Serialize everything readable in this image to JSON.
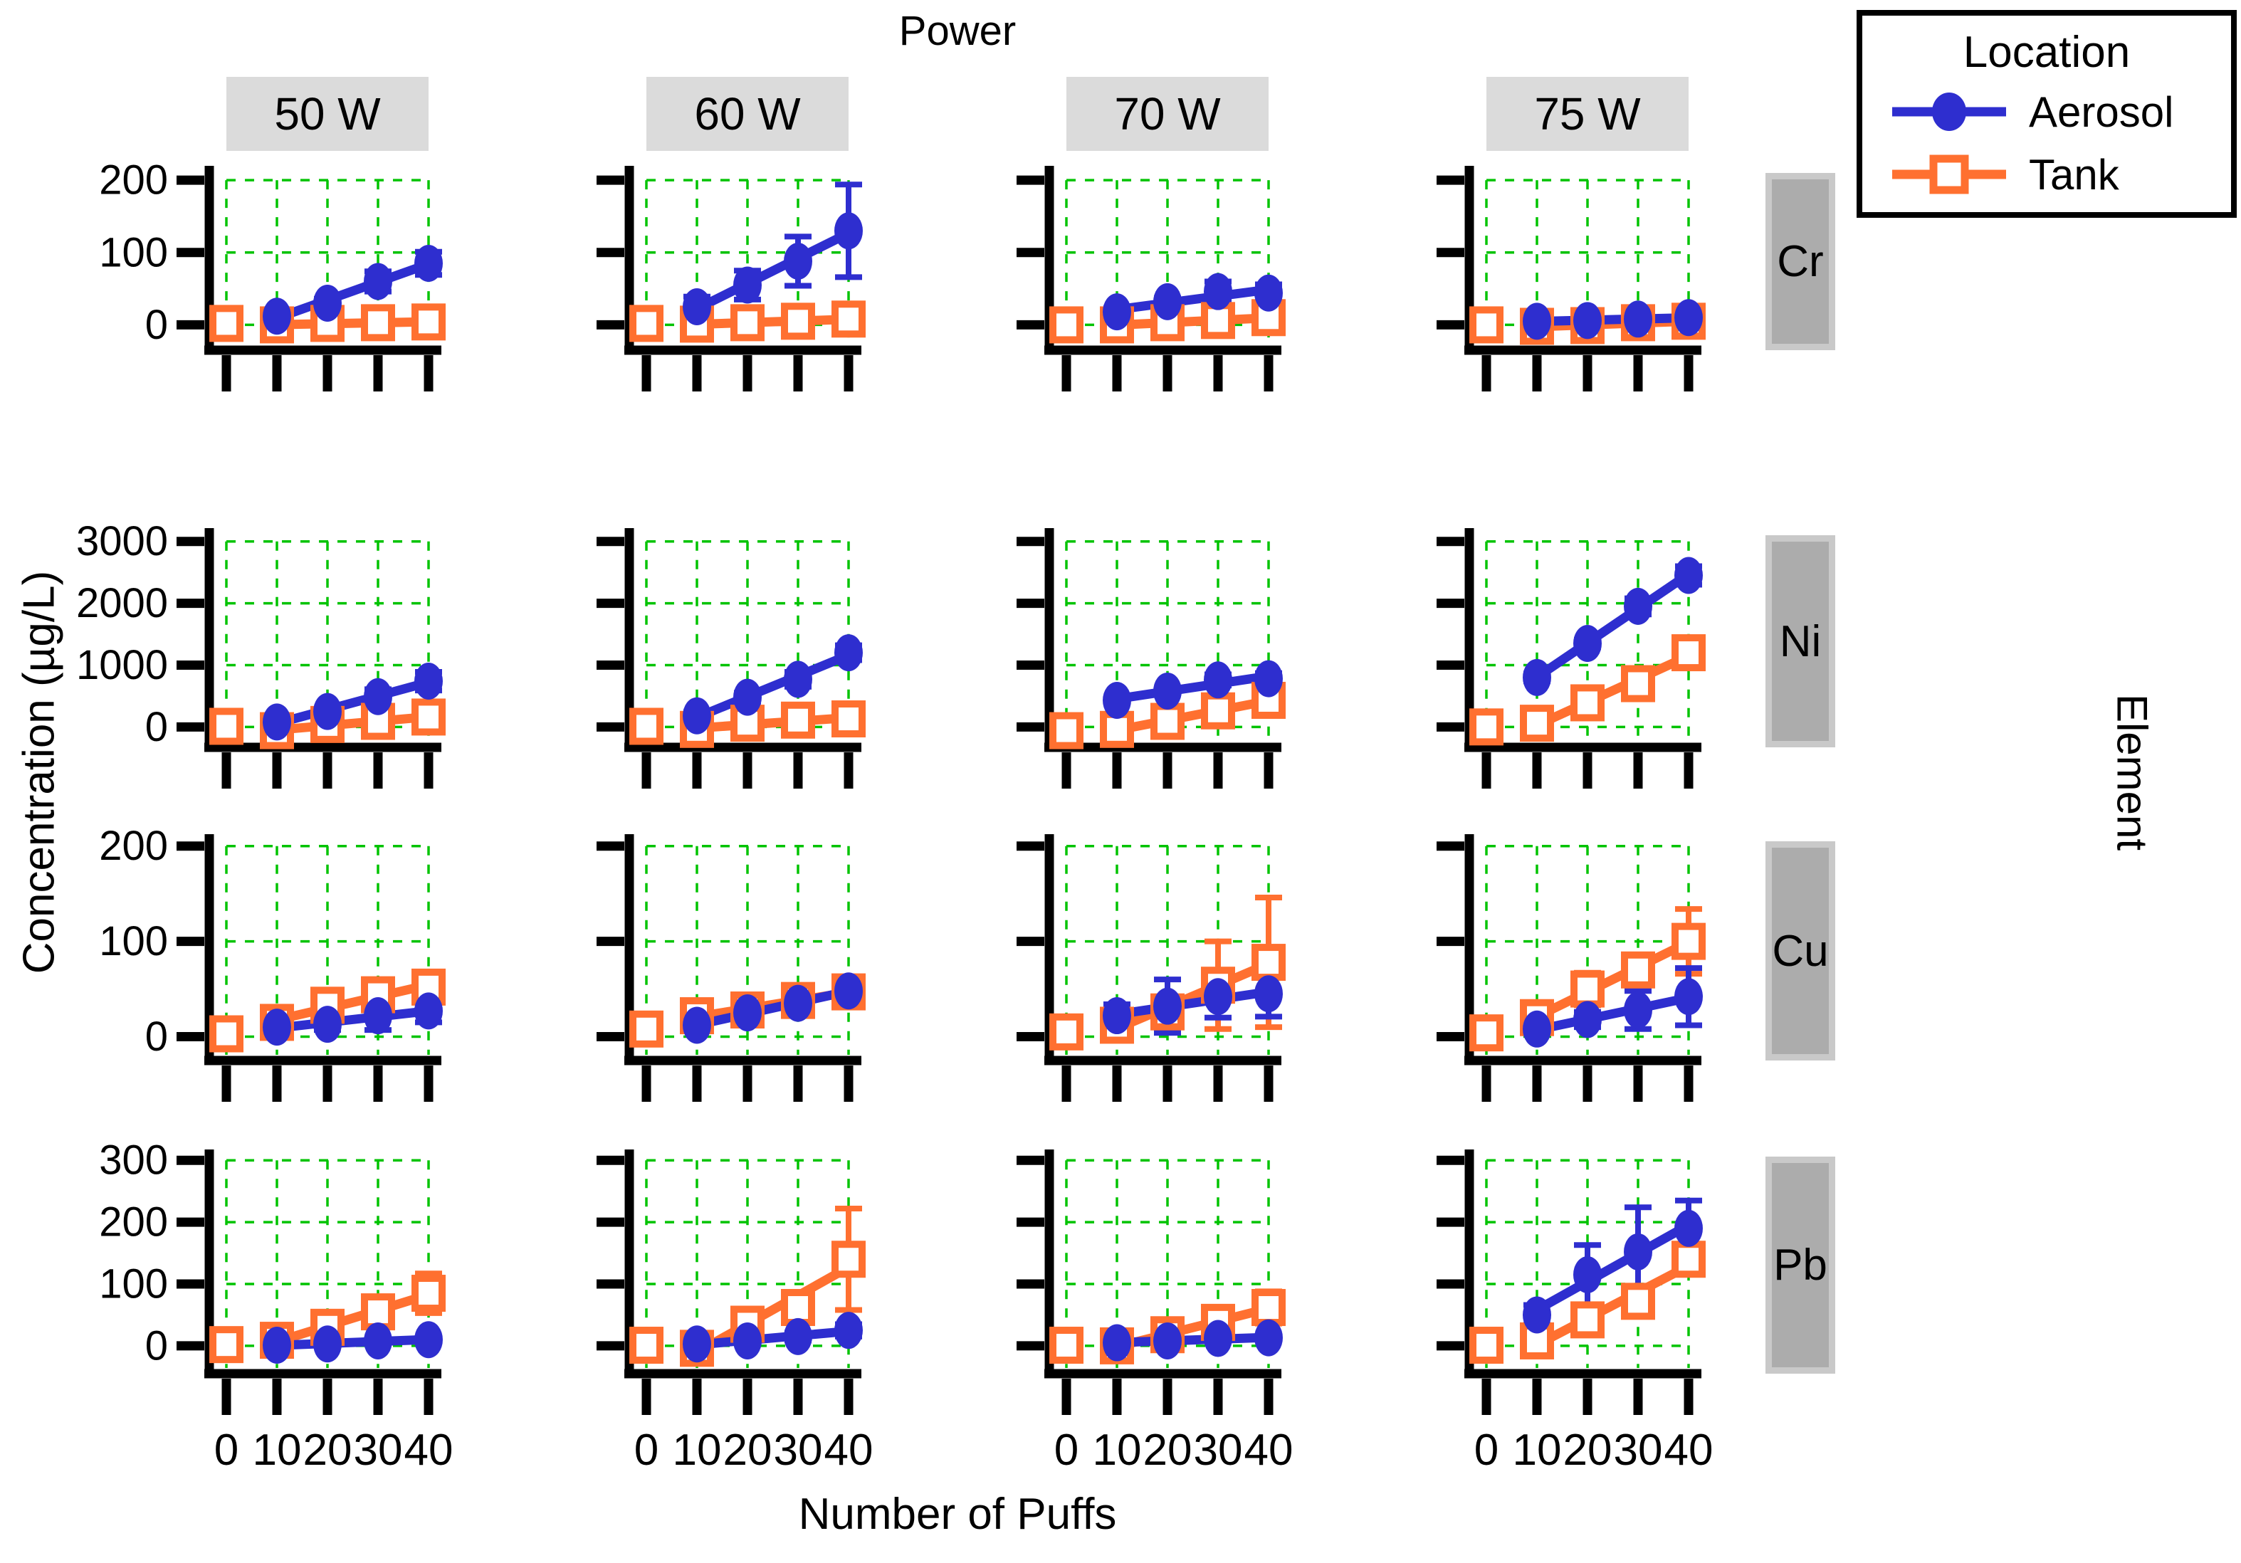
{
  "figure_title": "Power",
  "y_axis_label": "Concentration (µg/L)",
  "x_axis_label": "Number of Puffs",
  "right_axis_label": "Element",
  "legend": {
    "title": "Location",
    "entries": [
      {
        "label": "Aerosol",
        "series": "aerosol"
      },
      {
        "label": "Tank",
        "series": "tank"
      }
    ]
  },
  "colors": {
    "aerosol": "#2E2ECF",
    "tank": "#FF7030",
    "grid": "#00C300",
    "header_bg": "#DBDBDB",
    "row_strip_bg": "#ACACAC",
    "row_strip_border": "#C9C9C9",
    "axis": "#000000"
  },
  "chart_data": {
    "type": "line",
    "facet_col_variable": "Power",
    "facet_col_levels": [
      "50 W",
      "60 W",
      "70 W",
      "75 W"
    ],
    "facet_row_variable": "Element",
    "facet_row_levels": [
      "Cr",
      "Ni",
      "Cu",
      "Pb"
    ],
    "x_ticks": [
      0,
      10,
      20,
      30,
      40
    ],
    "series_names": [
      "Aerosol",
      "Tank"
    ],
    "rows": [
      {
        "element": "Cr",
        "y_ticks": [
          0,
          100,
          200
        ],
        "ylim": [
          -35,
          210
        ],
        "panels": [
          {
            "power": "50 W",
            "aerosol": {
              "x": [
                10,
                20,
                30,
                40
              ],
              "y": [
                12,
                30,
                60,
                85
              ],
              "err": [
                4,
                6,
                14,
                16
              ]
            },
            "tank": {
              "x": [
                0,
                10,
                20,
                30,
                40
              ],
              "y": [
                2,
                0,
                2,
                3,
                4
              ],
              "err": [
                0,
                0,
                0,
                0,
                0
              ]
            }
          },
          {
            "power": "60 W",
            "aerosol": {
              "x": [
                10,
                20,
                30,
                40
              ],
              "y": [
                25,
                55,
                88,
                130
              ],
              "err": [
                14,
                20,
                34,
                64
              ]
            },
            "tank": {
              "x": [
                0,
                10,
                20,
                30,
                40
              ],
              "y": [
                2,
                1,
                3,
                5,
                8
              ],
              "err": [
                0,
                0,
                0,
                0,
                0
              ]
            }
          },
          {
            "power": "70 W",
            "aerosol": {
              "x": [
                10,
                20,
                30,
                40
              ],
              "y": [
                18,
                32,
                46,
                44
              ],
              "err": [
                5,
                5,
                14,
                12
              ]
            },
            "tank": {
              "x": [
                0,
                10,
                20,
                30,
                40
              ],
              "y": [
                0,
                0,
                3,
                6,
                10
              ],
              "err": [
                0,
                0,
                0,
                0,
                0
              ]
            }
          },
          {
            "power": "75 W",
            "aerosol": {
              "x": [
                10,
                20,
                30,
                40
              ],
              "y": [
                5,
                6,
                8,
                10
              ],
              "err": [
                2,
                2,
                2,
                3
              ]
            },
            "tank": {
              "x": [
                0,
                10,
                20,
                30,
                40
              ],
              "y": [
                0,
                -2,
                -1,
                3,
                5
              ],
              "err": [
                0,
                0,
                3,
                0,
                2
              ]
            }
          }
        ]
      },
      {
        "element": "Ni",
        "y_ticks": [
          0,
          1000,
          2000,
          3000
        ],
        "ylim": [
          -330,
          3100
        ],
        "panels": [
          {
            "power": "50 W",
            "aerosol": {
              "x": [
                10,
                20,
                30,
                40
              ],
              "y": [
                80,
                250,
                490,
                740
              ],
              "err": [
                40,
                50,
                120,
                150
              ]
            },
            "tank": {
              "x": [
                0,
                10,
                20,
                30,
                40
              ],
              "y": [
                10,
                -60,
                40,
                90,
                160
              ],
              "err": [
                0,
                0,
                0,
                0,
                0
              ]
            }
          },
          {
            "power": "60 W",
            "aerosol": {
              "x": [
                10,
                20,
                30,
                40
              ],
              "y": [
                180,
                480,
                770,
                1200
              ],
              "err": [
                60,
                70,
                120,
                120
              ]
            },
            "tank": {
              "x": [
                0,
                10,
                20,
                30,
                40
              ],
              "y": [
                10,
                -40,
                60,
                110,
                130
              ],
              "err": [
                0,
                0,
                0,
                0,
                0
              ]
            }
          },
          {
            "power": "70 W",
            "aerosol": {
              "x": [
                10,
                20,
                30,
                40
              ],
              "y": [
                430,
                580,
                760,
                780
              ],
              "err": [
                40,
                50,
                90,
                90
              ]
            },
            "tank": {
              "x": [
                0,
                10,
                20,
                30,
                40
              ],
              "y": [
                -60,
                -40,
                90,
                260,
                430
              ],
              "err": [
                0,
                0,
                0,
                0,
                0
              ]
            }
          },
          {
            "power": "75 W",
            "aerosol": {
              "x": [
                10,
                20,
                30,
                40
              ],
              "y": [
                800,
                1350,
                1950,
                2450
              ],
              "err": [
                60,
                60,
                130,
                150
              ]
            },
            "tank": {
              "x": [
                0,
                10,
                20,
                30,
                40
              ],
              "y": [
                0,
                60,
                390,
                700,
                1200
              ],
              "err": [
                0,
                0,
                0,
                0,
                0
              ]
            }
          }
        ]
      },
      {
        "element": "Cu",
        "y_ticks": [
          0,
          100,
          200
        ],
        "ylim": [
          -25,
          205
        ],
        "panels": [
          {
            "power": "50 W",
            "aerosol": {
              "x": [
                10,
                20,
                30,
                40
              ],
              "y": [
                10,
                13,
                22,
                27
              ],
              "err": [
                3,
                6,
                15,
                12
              ]
            },
            "tank": {
              "x": [
                0,
                10,
                20,
                30,
                40
              ],
              "y": [
                3,
                15,
                33,
                44,
                52
              ],
              "err": [
                0,
                3,
                5,
                9,
                9
              ]
            }
          },
          {
            "power": "60 W",
            "aerosol": {
              "x": [
                10,
                20,
                30,
                40
              ],
              "y": [
                12,
                25,
                35,
                48
              ],
              "err": [
                5,
                8,
                11,
                14
              ]
            },
            "tank": {
              "x": [
                0,
                10,
                20,
                30,
                40
              ],
              "y": [
                8,
                22,
                28,
                38,
                47
              ],
              "err": [
                0,
                8,
                8,
                8,
                9
              ]
            }
          },
          {
            "power": "70 W",
            "aerosol": {
              "x": [
                10,
                20,
                30,
                40
              ],
              "y": [
                22,
                32,
                42,
                45
              ],
              "err": [
                12,
                28,
                22,
                24
              ]
            },
            "tank": {
              "x": [
                0,
                10,
                20,
                30,
                40
              ],
              "y": [
                5,
                12,
                26,
                54,
                78
              ],
              "err": [
                0,
                6,
                16,
                46,
                68
              ]
            }
          },
          {
            "power": "75 W",
            "aerosol": {
              "x": [
                10,
                20,
                30,
                40
              ],
              "y": [
                8,
                18,
                28,
                42
              ],
              "err": [
                4,
                8,
                20,
                30
              ]
            },
            "tank": {
              "x": [
                0,
                10,
                20,
                30,
                40
              ],
              "y": [
                4,
                20,
                50,
                70,
                100
              ],
              "err": [
                0,
                4,
                17,
                12,
                34
              ]
            }
          }
        ]
      },
      {
        "element": "Pb",
        "y_ticks": [
          0,
          100,
          200,
          300
        ],
        "ylim": [
          -45,
          306
        ],
        "panels": [
          {
            "power": "50 W",
            "aerosol": {
              "x": [
                10,
                20,
                30,
                40
              ],
              "y": [
                1,
                3,
                8,
                10
              ],
              "err": [
                2,
                2,
                3,
                4
              ]
            },
            "tank": {
              "x": [
                0,
                10,
                20,
                30,
                40
              ],
              "y": [
                2,
                9,
                30,
                55,
                85
              ],
              "err": [
                0,
                4,
                6,
                8,
                32
              ]
            }
          },
          {
            "power": "60 W",
            "aerosol": {
              "x": [
                10,
                20,
                30,
                40
              ],
              "y": [
                3,
                8,
                15,
                25
              ],
              "err": [
                3,
                4,
                6,
                10
              ]
            },
            "tank": {
              "x": [
                0,
                10,
                20,
                30,
                40
              ],
              "y": [
                1,
                -4,
                35,
                62,
                140
              ],
              "err": [
                0,
                4,
                6,
                20,
                82
              ]
            }
          },
          {
            "power": "70 W",
            "aerosol": {
              "x": [
                10,
                20,
                30,
                40
              ],
              "y": [
                5,
                8,
                12,
                13
              ],
              "err": [
                2,
                3,
                4,
                4
              ]
            },
            "tank": {
              "x": [
                0,
                10,
                20,
                30,
                40
              ],
              "y": [
                1,
                0,
                18,
                38,
                62
              ],
              "err": [
                0,
                2,
                4,
                12,
                26
              ]
            }
          },
          {
            "power": "75 W",
            "aerosol": {
              "x": [
                10,
                20,
                30,
                40
              ],
              "y": [
                50,
                115,
                152,
                190
              ],
              "err": [
                16,
                48,
                72,
                45
              ]
            },
            "tank": {
              "x": [
                0,
                10,
                20,
                30,
                40
              ],
              "y": [
                1,
                8,
                42,
                72,
                140
              ],
              "err": [
                0,
                4,
                8,
                14,
                22
              ]
            }
          }
        ]
      }
    ]
  }
}
